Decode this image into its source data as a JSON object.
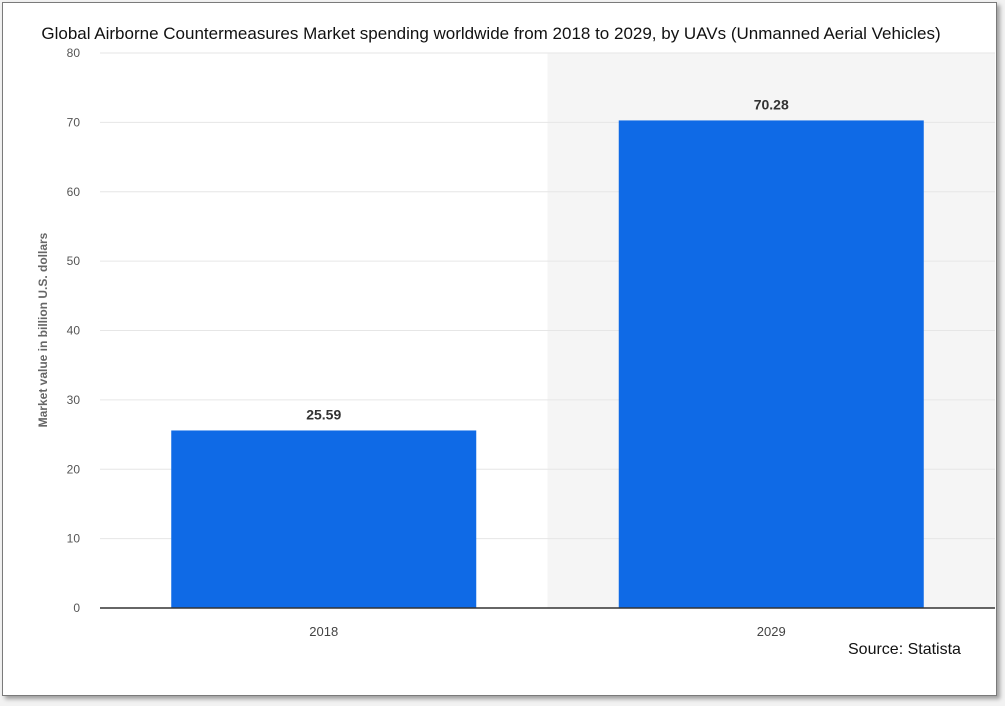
{
  "chart_data": {
    "type": "bar",
    "title": "Global Airborne Countermeasures Market spending worldwide from 2018 to 2029, by UAVs (Unmanned Aerial Vehicles)",
    "xlabel": "",
    "ylabel": "Market value in billion U.S. dollars",
    "categories": [
      "2018",
      "2029"
    ],
    "values": [
      25.59,
      70.28
    ],
    "data_labels": [
      "25.59",
      "70.28"
    ],
    "ylim": [
      0,
      80
    ],
    "yticks": [
      0,
      10,
      20,
      30,
      40,
      50,
      60,
      70,
      80
    ],
    "grid": true,
    "highlighted_category": "2029",
    "colors": {
      "bar": "#0f6ae6",
      "highlight_background": "#f5f5f5",
      "gridline": "#e6e6e6",
      "axis": "#333333"
    }
  },
  "source": "Source: Statista"
}
